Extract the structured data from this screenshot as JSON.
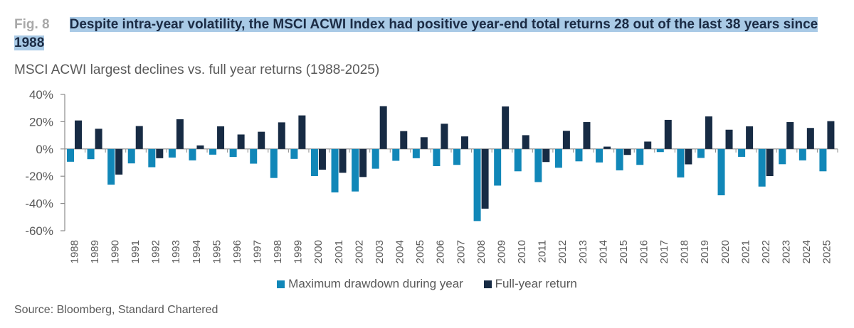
{
  "header": {
    "fig_label": "Fig. 8",
    "title": "Despite intra-year volatility, the MSCI ACWI Index had positive year-end total returns 28 out of the last 38 years since 1988",
    "subtitle": "MSCI ACWI largest declines vs. full year returns (1988-2025)"
  },
  "source": "Source: Bloomberg, Standard Chartered",
  "chart_data": {
    "type": "bar",
    "title": "MSCI ACWI largest declines vs. full year returns (1988-2025)",
    "xlabel": "",
    "ylabel": "",
    "ylim": [
      -60,
      40
    ],
    "yticks": [
      "40%",
      "20%",
      "0%",
      "-20%",
      "-40%",
      "-60%"
    ],
    "ytick_values": [
      40,
      20,
      0,
      -20,
      -40,
      -60
    ],
    "grid": false,
    "legend": "bottom",
    "categories": [
      "1988",
      "1989",
      "1990",
      "1991",
      "1992",
      "1993",
      "1994",
      "1995",
      "1996",
      "1997",
      "1998",
      "1999",
      "2000",
      "2001",
      "2002",
      "2003",
      "2004",
      "2005",
      "2006",
      "2007",
      "2008",
      "2009",
      "2010",
      "2011",
      "2012",
      "2013",
      "2014",
      "2015",
      "2016",
      "2017",
      "2018",
      "2019",
      "2020",
      "2021",
      "2022",
      "2023",
      "2024",
      "2025"
    ],
    "series": [
      {
        "name": "Maximum drawdown during year",
        "color": "#1187b8",
        "values": [
          -9.4,
          -7.5,
          -26.2,
          -10.6,
          -13.4,
          -6.3,
          -8.4,
          -4.2,
          -5.9,
          -10.8,
          -21.3,
          -7.3,
          -19.9,
          -31.9,
          -31.2,
          -14.5,
          -8.7,
          -6.8,
          -12.6,
          -11.7,
          -52.9,
          -26.9,
          -16.4,
          -24.3,
          -13.8,
          -9.1,
          -9.9,
          -15.7,
          -11.7,
          -2.3,
          -20.9,
          -6.6,
          -34.0,
          -5.8,
          -27.6,
          -11.2,
          -8.4,
          -16.4
        ]
      },
      {
        "name": "Full-year return",
        "color": "#172b44",
        "values": [
          20.9,
          14.8,
          -18.8,
          16.8,
          -6.8,
          21.8,
          2.6,
          16.6,
          10.6,
          12.6,
          19.5,
          24.6,
          -15.2,
          -17.5,
          -20.6,
          31.4,
          13.1,
          8.6,
          18.5,
          9.2,
          -43.8,
          31.2,
          10.1,
          -9.6,
          13.3,
          19.7,
          1.7,
          -4.4,
          5.4,
          21.3,
          -11.3,
          23.9,
          14.1,
          16.6,
          -19.9,
          19.7,
          15.4,
          20.4
        ]
      }
    ]
  }
}
